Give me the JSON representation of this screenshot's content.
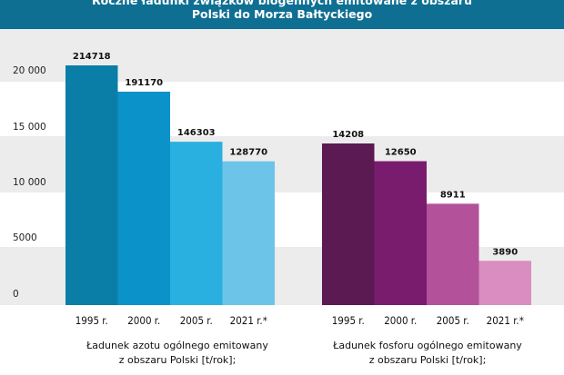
{
  "chart_data": [
    {
      "type": "bar",
      "title_line1": "Roczne ładunki związków biogennych emitowane z obszaru",
      "title_line2": "Polski do Morza Bałtyckiego",
      "yticks": [
        "0",
        "5000",
        "10 000",
        "15 000",
        "20 000"
      ],
      "categories": [
        "1995 r.",
        "2000 r.",
        "2005 r.",
        "2021 r.*"
      ],
      "values": [
        214718,
        191170,
        146303,
        128770
      ],
      "value_labels": [
        "214718",
        "191170",
        "146303",
        "128770"
      ],
      "colors": [
        "#0b7ea8",
        "#0b92c8",
        "#2ab0e0",
        "#6cc4e8"
      ],
      "xlabel_line1": "Ładunek azotu ogólnego emitowany",
      "xlabel_line2": "z obszaru Polski [t/rok];"
    },
    {
      "type": "bar",
      "categories": [
        "1995 r.",
        "2000 r.",
        "2005 r.",
        "2021 r.*"
      ],
      "values": [
        14208,
        12650,
        8911,
        3890
      ],
      "value_labels": [
        "14208",
        "12650",
        "8911",
        "3890"
      ],
      "colors": [
        "#5b1a52",
        "#7a1c6e",
        "#b3519a",
        "#d98dc1"
      ],
      "xlabel_line1": "Ładunek fosforu ogólnego emitowany",
      "xlabel_line2": "z obszaru Polski [t/rok];"
    }
  ]
}
